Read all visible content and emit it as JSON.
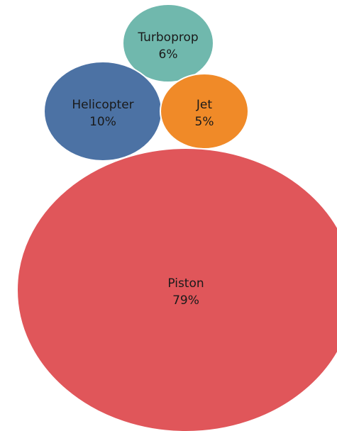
{
  "chart_data": {
    "type": "bubble",
    "series": [
      {
        "name": "Turboprop",
        "value": 6,
        "label": "6%",
        "color": "#70b8ad"
      },
      {
        "name": "Helicopter",
        "value": 10,
        "label": "10%",
        "color": "#4c72a4"
      },
      {
        "name": "Jet",
        "value": 5,
        "label": "5%",
        "color": "#f08a28"
      },
      {
        "name": "Piston",
        "value": 79,
        "label": "79%",
        "color": "#e0565a"
      }
    ]
  }
}
